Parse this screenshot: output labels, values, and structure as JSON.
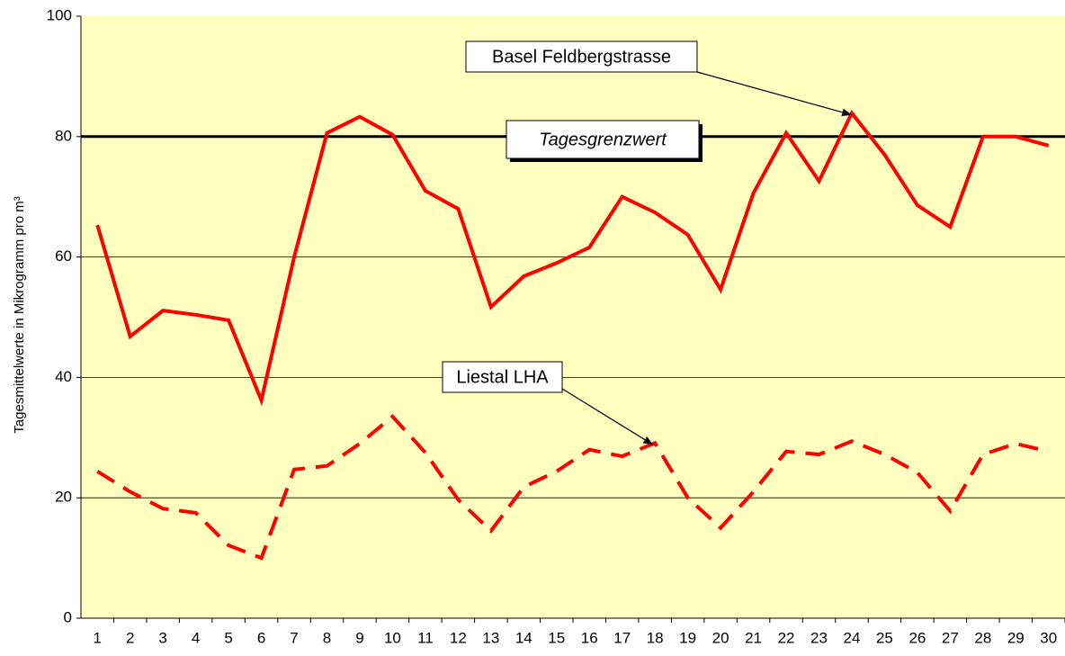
{
  "chart_data": {
    "type": "line",
    "y_label": "Tagesmittelwerte in Mikrogramm pro m³",
    "categories": [
      "1",
      "2",
      "3",
      "4",
      "5",
      "6",
      "7",
      "8",
      "9",
      "10",
      "11",
      "12",
      "13",
      "14",
      "15",
      "16",
      "17",
      "18",
      "19",
      "20",
      "21",
      "22",
      "23",
      "24",
      "25",
      "26",
      "27",
      "28",
      "29",
      "30"
    ],
    "series": [
      {
        "name": "Basel Feldbergstrasse",
        "color": "#ff0000",
        "dash": "solid",
        "values": [
          65.3,
          46.8,
          51.1,
          50.4,
          49.5,
          36.2,
          60,
          80.6,
          83.3,
          80.3,
          71,
          68,
          51.7,
          56.8,
          59,
          61.6,
          70,
          67.4,
          63.7,
          54.6,
          70.6,
          80.6,
          72.6,
          83.9,
          77,
          68.6,
          65,
          80,
          80,
          78.5
        ]
      },
      {
        "name": "Liestal LHA",
        "color": "#ff0000",
        "dash": "dashed",
        "values": [
          24.4,
          21,
          18.2,
          17.5,
          12.1,
          10,
          24.7,
          25.3,
          29,
          33.5,
          27.5,
          19.7,
          14.5,
          21.8,
          24.4,
          28,
          26.9,
          29.1,
          20,
          15,
          21,
          27.7,
          27.2,
          29.4,
          27.2,
          24.2,
          17.8,
          27.2,
          29,
          27.7
        ]
      }
    ],
    "reference_line": {
      "value": 80,
      "label": "Tagesgrenzwert",
      "color": "#000000"
    },
    "ylim": [
      0,
      100
    ],
    "yticks": [
      0,
      20,
      40,
      60,
      80,
      100
    ],
    "grid": true,
    "plot_background": "#ffffc0"
  }
}
